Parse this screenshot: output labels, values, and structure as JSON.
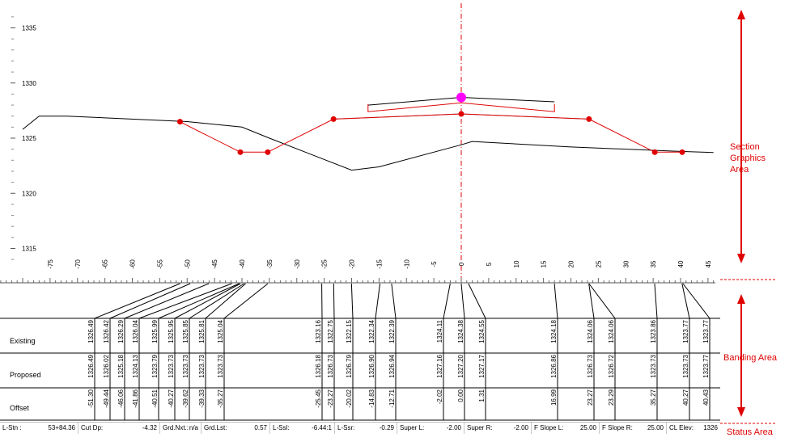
{
  "colors": {
    "accent_red": "#e00000",
    "apex_magenta": "#ff00ff",
    "existing_line": "#000000",
    "template_gray": "#808080"
  },
  "y_axis": {
    "ticks": [
      "1335",
      "1330",
      "1325",
      "1320",
      "1315"
    ]
  },
  "x_axis": {
    "ticks": [
      "-75",
      "-70",
      "-65",
      "-60",
      "-55",
      "-50",
      "-45",
      "-40",
      "-35",
      "-30",
      "-25",
      "-20",
      "-15",
      "-10",
      "-5",
      "0",
      "5",
      "10",
      "15",
      "20",
      "25",
      "30",
      "35",
      "40",
      "45"
    ]
  },
  "annotations": {
    "section_graphics": [
      "Section",
      "Graphics",
      "Area"
    ],
    "banding": "Banding Area",
    "status": "Status Area"
  },
  "bands": {
    "row_labels": [
      "Existing",
      "Proposed",
      "Offset"
    ],
    "columns": [
      {
        "existing": "1326.49",
        "proposed": "1326.49",
        "offset": "-51.30"
      },
      {
        "existing": "1326.42",
        "proposed": "1326.02",
        "offset": "-49.44"
      },
      {
        "existing": "1326.29",
        "proposed": "1325.18",
        "offset": "-46.06"
      },
      {
        "existing": "1326.04",
        "proposed": "1324.13",
        "offset": "-41.86"
      },
      {
        "existing": "1325.99",
        "proposed": "1323.79",
        "offset": "-40.51"
      },
      {
        "existing": "1325.95",
        "proposed": "1323.73",
        "offset": "-40.27"
      },
      {
        "existing": "1325.85",
        "proposed": "1323.73",
        "offset": "-39.62"
      },
      {
        "existing": "1325.81",
        "proposed": "1323.73",
        "offset": "-39.33"
      },
      {
        "existing": "1325.04",
        "proposed": "1323.73",
        "offset": "-35.27"
      },
      {
        "existing": "1323.16",
        "proposed": "1326.18",
        "offset": "-25.45"
      },
      {
        "existing": "1322.75",
        "proposed": "1326.73",
        "offset": "-23.27"
      },
      {
        "existing": "1322.15",
        "proposed": "1326.79",
        "offset": "-20.02"
      },
      {
        "existing": "1322.34",
        "proposed": "1326.90",
        "offset": "-14.83"
      },
      {
        "existing": "1322.39",
        "proposed": "1326.94",
        "offset": "-12.71"
      },
      {
        "existing": "1324.11",
        "proposed": "1327.16",
        "offset": "-2.02"
      },
      {
        "existing": "1324.38",
        "proposed": "1327.20",
        "offset": "0.00"
      },
      {
        "existing": "1324.55",
        "proposed": "1327.17",
        "offset": "1.31"
      },
      {
        "existing": "1324.18",
        "proposed": "1326.86",
        "offset": "16.99"
      },
      {
        "existing": "1324.06",
        "proposed": "1326.73",
        "offset": "23.27"
      },
      {
        "existing": "1324.06",
        "proposed": "1326.72",
        "offset": "23.29"
      },
      {
        "existing": "1323.86",
        "proposed": "1323.73",
        "offset": "35.27"
      },
      {
        "existing": "1323.77",
        "proposed": "1323.73",
        "offset": "40.27"
      },
      {
        "existing": "1323.77",
        "proposed": "1323.77",
        "offset": "40.43"
      }
    ]
  },
  "section": {
    "existing_ground": [
      [
        -80,
        1325.8
      ],
      [
        -77,
        1327.0
      ],
      [
        -72,
        1327.0
      ],
      [
        -50,
        1326.5
      ],
      [
        -40,
        1326.0
      ],
      [
        -35,
        1325.0
      ],
      [
        -20,
        1322.1
      ],
      [
        -15,
        1322.4
      ],
      [
        0,
        1324.4
      ],
      [
        2,
        1324.7
      ],
      [
        20,
        1324.2
      ],
      [
        35,
        1323.9
      ],
      [
        40,
        1323.8
      ],
      [
        46,
        1323.7
      ]
    ],
    "proposed_red": [
      [
        -51.3,
        1326.49
      ],
      [
        -40.3,
        1323.73
      ],
      [
        -35.3,
        1323.73
      ],
      [
        -23.3,
        1326.73
      ],
      [
        0,
        1327.2
      ],
      [
        23.3,
        1326.73
      ],
      [
        35.3,
        1323.73
      ],
      [
        40.3,
        1323.73
      ]
    ],
    "proposed_gray": [
      [
        -23.3,
        1326.73
      ],
      [
        0,
        1327.2
      ],
      [
        23.3,
        1326.73
      ]
    ],
    "top_surface": [
      [
        -17,
        1328.0
      ],
      [
        0,
        1328.7
      ],
      [
        17,
        1328.3
      ]
    ],
    "bracket_top": 1328.1,
    "bracket_bottom": 1327.4,
    "bracket_mid": 1328.2,
    "bracket_left": -17,
    "bracket_right": 17,
    "points": [
      [
        -51.3,
        1326.49
      ],
      [
        -40.3,
        1323.73
      ],
      [
        -35.3,
        1323.73
      ],
      [
        -23.3,
        1326.73
      ],
      [
        0,
        1327.2
      ],
      [
        23.3,
        1326.73
      ],
      [
        35.3,
        1323.73
      ],
      [
        40.3,
        1323.73
      ]
    ],
    "apex_point": [
      0,
      1328.7
    ]
  },
  "status_bar": {
    "fields": [
      {
        "label": "L-Stn :",
        "value": "53+84.36"
      },
      {
        "label": "Cut Dp:",
        "value": "-4.32"
      },
      {
        "label": "Grd.Nxt.:",
        "value": "n/a"
      },
      {
        "label": "Grd.Lst:",
        "value": "0.57"
      },
      {
        "label": "L-Ssl:",
        "value": "-6.44:1"
      },
      {
        "label": "L-Ssr:",
        "value": "-0.29"
      },
      {
        "label": "Super L:",
        "value": "-2.00"
      },
      {
        "label": "Super R:",
        "value": "-2.00"
      },
      {
        "label": "F Slope L:",
        "value": "25.00"
      },
      {
        "label": "F Slope R:",
        "value": "25.00"
      },
      {
        "label": "CL Elev:",
        "value": "1326"
      }
    ]
  }
}
